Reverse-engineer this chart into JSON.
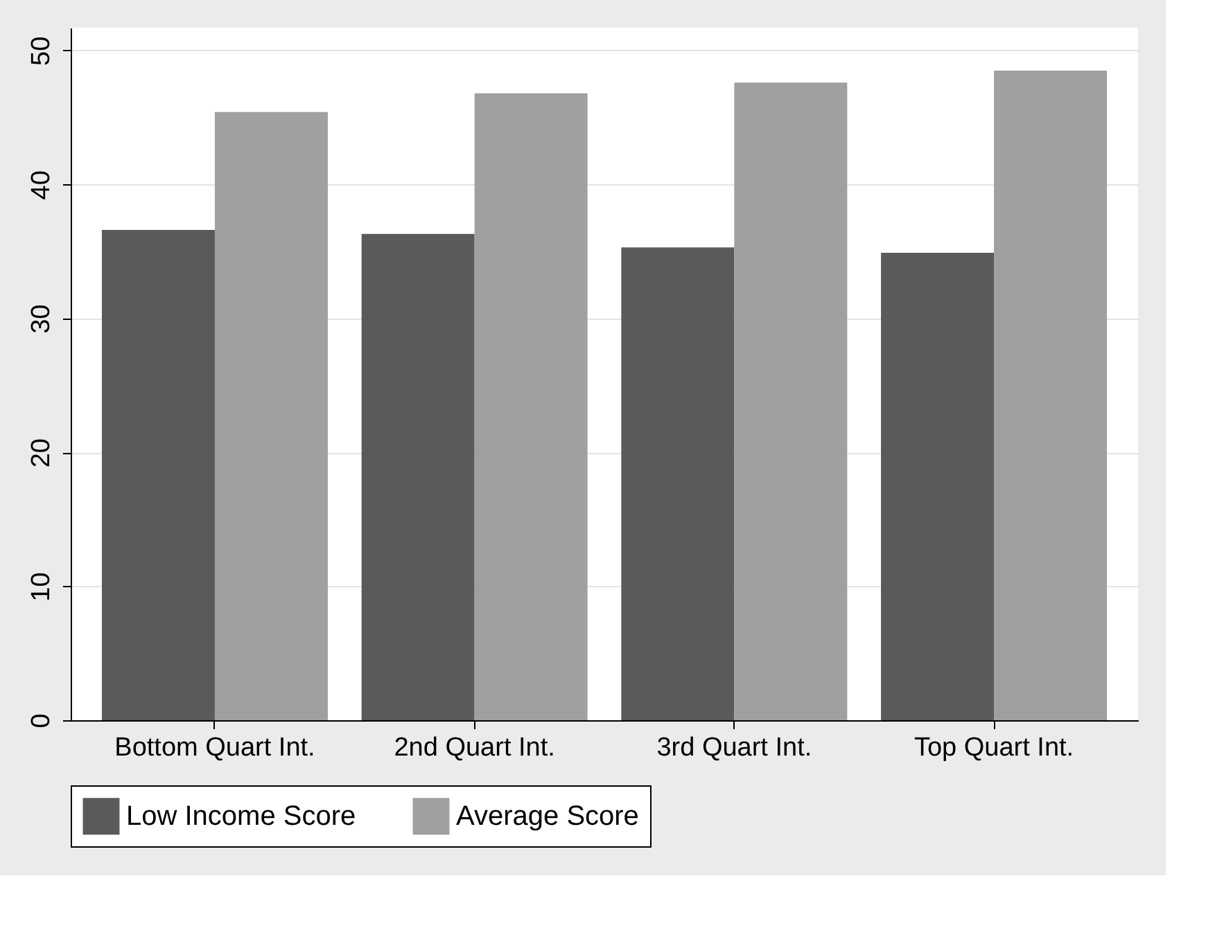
{
  "chart_data": {
    "type": "bar",
    "categories": [
      "Bottom Quart Int.",
      "2nd Quart Int.",
      "3rd Quart Int.",
      "Top Quart Int."
    ],
    "series": [
      {
        "name": "Low Income Score",
        "color": "#5a5a5a",
        "values": [
          36.6,
          36.3,
          35.3,
          34.9
        ]
      },
      {
        "name": "Average Score",
        "color": "#a0a0a0",
        "values": [
          45.4,
          46.8,
          47.6,
          48.5
        ]
      }
    ],
    "ylim": [
      0,
      51.7
    ],
    "yticks": [
      0,
      10,
      20,
      30,
      40,
      50
    ],
    "grid": "y",
    "legend": "bottom"
  }
}
